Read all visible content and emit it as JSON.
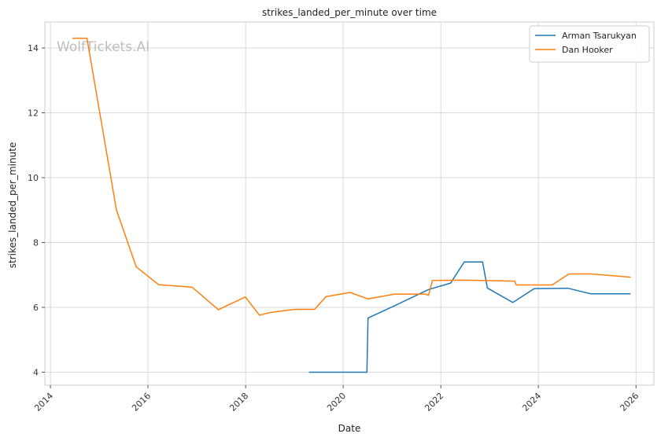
{
  "watermark": "WolfTickets.AI",
  "chart_data": {
    "type": "line",
    "title": "strikes_landed_per_minute over time",
    "xlabel": "Date",
    "ylabel": "strikes_landed_per_minute",
    "x_type": "date",
    "xlim": [
      "2013-11-20",
      "2026-05-15"
    ],
    "ylim": [
      3.6,
      14.8
    ],
    "x_ticks": [
      "2014",
      "2016",
      "2018",
      "2020",
      "2022",
      "2024",
      "2026"
    ],
    "y_ticks": [
      4,
      6,
      8,
      10,
      12,
      14
    ],
    "grid": true,
    "legend_position": "top-right",
    "series": [
      {
        "name": "Arman Tsarukyan",
        "color": "#1f77b4",
        "points": [
          [
            "2019-04-20",
            4.0
          ],
          [
            "2020-01-25",
            4.0
          ],
          [
            "2020-06-27",
            4.0
          ],
          [
            "2020-07-05",
            5.67
          ],
          [
            "2021-01-20",
            6.05
          ],
          [
            "2021-10-01",
            6.55
          ],
          [
            "2022-03-15",
            6.75
          ],
          [
            "2022-06-25",
            7.4
          ],
          [
            "2022-11-10",
            7.4
          ],
          [
            "2022-12-15",
            6.6
          ],
          [
            "2023-06-24",
            6.15
          ],
          [
            "2023-12-01",
            6.58
          ],
          [
            "2024-08-10",
            6.59
          ],
          [
            "2025-01-25",
            6.42
          ],
          [
            "2025-11-20",
            6.42
          ]
        ]
      },
      {
        "name": "Dan Hooker",
        "color": "#ff7f0e",
        "points": [
          [
            "2014-06-15",
            14.3
          ],
          [
            "2014-10-01",
            14.3
          ],
          [
            "2015-05-10",
            9.0
          ],
          [
            "2015-10-05",
            7.25
          ],
          [
            "2016-03-20",
            6.7
          ],
          [
            "2016-11-27",
            6.62
          ],
          [
            "2017-06-11",
            5.93
          ],
          [
            "2017-12-30",
            6.32
          ],
          [
            "2018-04-14",
            5.76
          ],
          [
            "2018-07-15",
            5.85
          ],
          [
            "2019-01-05",
            5.94
          ],
          [
            "2019-06-01",
            5.94
          ],
          [
            "2019-08-25",
            6.33
          ],
          [
            "2020-02-22",
            6.46
          ],
          [
            "2020-07-05",
            6.26
          ],
          [
            "2021-01-20",
            6.41
          ],
          [
            "2021-09-04",
            6.41
          ],
          [
            "2021-10-01",
            6.37
          ],
          [
            "2021-10-30",
            6.83
          ],
          [
            "2022-07-02",
            6.84
          ],
          [
            "2023-07-08",
            6.81
          ],
          [
            "2023-07-20",
            6.69
          ],
          [
            "2024-04-13",
            6.69
          ],
          [
            "2024-08-17",
            7.03
          ],
          [
            "2025-02-01",
            7.03
          ],
          [
            "2025-11-22",
            6.93
          ]
        ]
      }
    ]
  }
}
